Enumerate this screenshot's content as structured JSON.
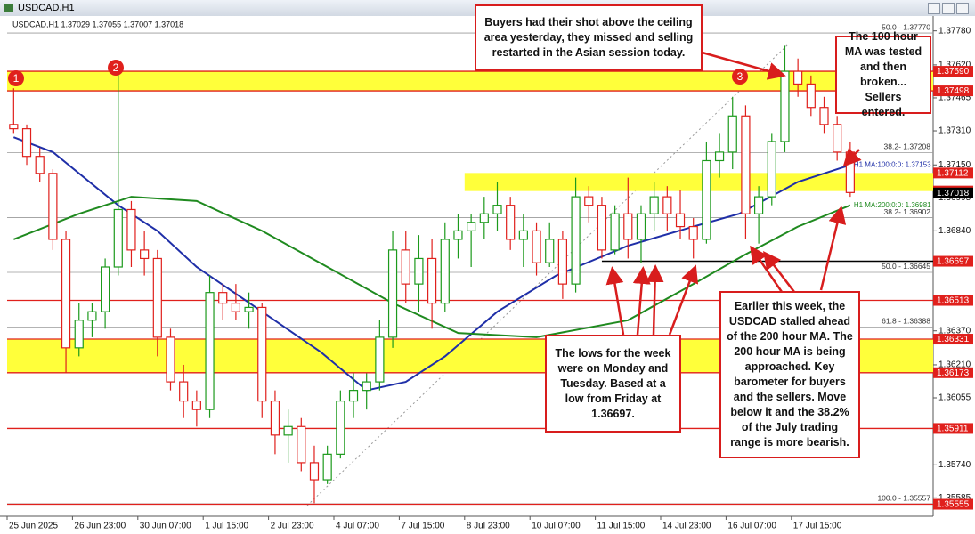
{
  "window": {
    "title": "USDCAD,H1"
  },
  "chart_data": {
    "type": "candlestick",
    "info": "USDCAD,H1  1.37029 1.37055 1.37007 1.37018",
    "categories": [
      "25 Jun 2025",
      null,
      null,
      null,
      null,
      "26 Jun 23:00",
      null,
      null,
      null,
      null,
      "30 Jun 07:00",
      null,
      null,
      null,
      null,
      "1 Jul 15:00",
      null,
      null,
      null,
      null,
      "2 Jul 23:00",
      null,
      null,
      null,
      null,
      "4 Jul 07:00",
      null,
      null,
      null,
      null,
      "7 Jul 15:00",
      null,
      null,
      null,
      null,
      "8 Jul 23:00",
      null,
      null,
      null,
      null,
      "10 Jul 07:00",
      null,
      null,
      null,
      null,
      "11 Jul 15:00",
      null,
      null,
      null,
      null,
      "14 Jul 23:00",
      null,
      null,
      null,
      null,
      "16 Jul 07:00",
      null,
      null,
      null,
      null,
      "17 Jul 15:00",
      null,
      null,
      null,
      null
    ],
    "open": [
      1.3734,
      1.3732,
      1.3719,
      1.3711,
      1.368,
      1.3629,
      1.3642,
      1.3646,
      1.3667,
      1.3694,
      1.3675,
      1.3671,
      1.3634,
      1.3613,
      1.3604,
      1.36,
      1.3655,
      1.365,
      1.3646,
      1.3648,
      1.3604,
      1.3588,
      1.3592,
      1.3575,
      1.3567,
      1.3579,
      1.3604,
      1.3609,
      1.3613,
      1.3634,
      1.3675,
      1.3659,
      1.3671,
      1.365,
      1.368,
      1.3684,
      1.3688,
      1.3692,
      1.3696,
      1.368,
      1.3684,
      1.3669,
      1.368,
      1.3659,
      1.37,
      1.3696,
      1.3675,
      1.3692,
      1.368,
      1.3692,
      1.37,
      1.3692,
      1.3686,
      1.368,
      1.3717,
      1.3721,
      1.3738,
      1.3692,
      1.37,
      1.3726,
      1.3759,
      1.3753,
      1.3742,
      1.3734,
      1.3721
    ],
    "high": [
      1.3751,
      1.3734,
      1.3723,
      1.3713,
      1.3684,
      1.365,
      1.365,
      1.3671,
      1.3761,
      1.3698,
      1.3684,
      1.3675,
      1.3638,
      1.3621,
      1.3609,
      1.3663,
      1.3659,
      1.3659,
      1.3655,
      1.365,
      1.3609,
      1.36,
      1.3596,
      1.3583,
      1.3583,
      1.3609,
      1.3617,
      1.3617,
      1.3642,
      1.3684,
      1.3684,
      1.3682,
      1.368,
      1.3688,
      1.3692,
      1.3692,
      1.37,
      1.3707,
      1.37,
      1.3692,
      1.3688,
      1.3688,
      1.3684,
      1.3709,
      1.3705,
      1.37,
      1.3696,
      1.3709,
      1.3696,
      1.3707,
      1.3705,
      1.3703,
      1.369,
      1.3726,
      1.373,
      1.3747,
      1.3743,
      1.3705,
      1.373,
      1.3771,
      1.3765,
      1.3757,
      1.3747,
      1.3738,
      1.3726
    ],
    "low": [
      1.373,
      1.3715,
      1.3707,
      1.3675,
      1.3617,
      1.3625,
      1.3634,
      1.3638,
      1.3663,
      1.3667,
      1.3663,
      1.3625,
      1.3609,
      1.3596,
      1.3592,
      1.3596,
      1.3642,
      1.3642,
      1.3638,
      1.3596,
      1.3579,
      1.3575,
      1.3571,
      1.3556,
      1.3565,
      1.3577,
      1.3596,
      1.36,
      1.3609,
      1.3629,
      1.365,
      1.3646,
      1.3638,
      1.3646,
      1.3671,
      1.3667,
      1.368,
      1.3684,
      1.3675,
      1.3667,
      1.3663,
      1.3667,
      1.3652,
      1.3655,
      1.3688,
      1.3671,
      1.3673,
      1.3671,
      1.3669,
      1.3684,
      1.3684,
      1.368,
      1.3671,
      1.3678,
      1.3709,
      1.3713,
      1.368,
      1.3678,
      1.3696,
      1.3721,
      1.3747,
      1.3738,
      1.373,
      1.3717,
      1.37
    ],
    "close": [
      1.3732,
      1.3719,
      1.3711,
      1.368,
      1.3629,
      1.3642,
      1.3646,
      1.3667,
      1.3694,
      1.3675,
      1.3671,
      1.3634,
      1.3613,
      1.3604,
      1.36,
      1.3655,
      1.365,
      1.3646,
      1.3648,
      1.3604,
      1.3588,
      1.3592,
      1.3575,
      1.3567,
      1.3579,
      1.3604,
      1.3609,
      1.3613,
      1.3634,
      1.3675,
      1.3659,
      1.3671,
      1.365,
      1.368,
      1.3684,
      1.3688,
      1.3692,
      1.3696,
      1.368,
      1.3684,
      1.3669,
      1.368,
      1.3659,
      1.37,
      1.3696,
      1.3675,
      1.3692,
      1.368,
      1.3692,
      1.37,
      1.3692,
      1.3686,
      1.368,
      1.3717,
      1.3721,
      1.3738,
      1.3692,
      1.37,
      1.3726,
      1.3759,
      1.3753,
      1.3742,
      1.3734,
      1.3721,
      1.3702
    ],
    "up_color": "#1c9a1c",
    "down_color": "#e0201c",
    "ylim": [
      1.35507,
      1.37833
    ],
    "yticks": [
      {
        "value": 1.3778,
        "label": "1.37780"
      },
      {
        "value": 1.3762,
        "label": "1.37620"
      },
      {
        "value": 1.37465,
        "label": "1.37465"
      },
      {
        "value": 1.3731,
        "label": "1.37310"
      },
      {
        "value": 1.3715,
        "label": "1.37150"
      },
      {
        "value": 1.36995,
        "label": "1.36995"
      },
      {
        "value": 1.3684,
        "label": "1.36840"
      },
      {
        "value": 1.3637,
        "label": "1.36370"
      },
      {
        "value": 1.3621,
        "label": "1.36210"
      },
      {
        "value": 1.36055,
        "label": "1.36055"
      },
      {
        "value": 1.3574,
        "label": "1.35740"
      },
      {
        "value": 1.35585,
        "label": "1.35585"
      }
    ],
    "series": [
      {
        "label": "H1 MA:100:0:0: 1.37153",
        "color": "#1f2fa8",
        "x": [
          0,
          3,
          8,
          11,
          14,
          19,
          23.5,
          27,
          30,
          33,
          37,
          41.5,
          47,
          52,
          55.5,
          60,
          64
        ],
        "values": [
          1.3728,
          1.3721,
          1.3696,
          1.3684,
          1.3667,
          1.3646,
          1.3627,
          1.3609,
          1.3613,
          1.3625,
          1.3646,
          1.3663,
          1.3677,
          1.3686,
          1.3692,
          1.3707,
          1.3715
        ]
      },
      {
        "label": "H1 MA:200:0:0: 1.36981",
        "color": "#1f8a1f",
        "x": [
          0,
          5,
          9,
          14,
          19,
          24,
          29,
          34,
          40,
          47,
          52,
          56,
          60,
          64
        ],
        "values": [
          1.368,
          1.3692,
          1.37,
          1.3698,
          1.3684,
          1.3667,
          1.365,
          1.3636,
          1.3634,
          1.3642,
          1.3659,
          1.3673,
          1.3686,
          1.3696
        ]
      }
    ],
    "zones": [
      {
        "from": 1.37498,
        "to": 1.3759,
        "start": 0
      },
      {
        "from": 1.37027,
        "to": 1.37112,
        "start": 35
      },
      {
        "from": 1.36173,
        "to": 1.36331,
        "start": 0
      }
    ],
    "zone_color": "#ffff3a",
    "fib_levels": [
      {
        "value": 1.3777,
        "label": "50.0 - 1.37770"
      },
      {
        "value": 1.37208,
        "label": "38.2- 1.37208"
      },
      {
        "value": 1.36902,
        "label": "38.2- 1.36902"
      },
      {
        "value": 1.36645,
        "label": "50.0 - 1.36645"
      },
      {
        "value": 1.36388,
        "label": "61.8 - 1.36388"
      },
      {
        "value": 1.35557,
        "label": "100.0 - 1.35557"
      }
    ],
    "price_markers": [
      {
        "value": 1.3759,
        "label": "1.37590",
        "from": 0,
        "line_color": "#e0201c"
      },
      {
        "value": 1.37498,
        "label": "1.37498",
        "from": 0,
        "line_color": "#e0201c"
      },
      {
        "value": 1.37112,
        "label": "1.37112",
        "from": null,
        "line_color": null
      },
      {
        "value": 1.37027,
        "label": "1.37027",
        "from": null,
        "line_color": null
      },
      {
        "value": 1.36697,
        "label": "1.36697",
        "from": 45.5,
        "line_color": "#000000"
      },
      {
        "value": 1.36513,
        "label": "1.36513",
        "from": 0,
        "line_color": "#e0201c"
      },
      {
        "value": 1.36331,
        "label": "1.36331",
        "from": 0,
        "line_color": "#e0201c"
      },
      {
        "value": 1.36173,
        "label": "1.36173",
        "from": 0,
        "line_color": "#e0201c"
      },
      {
        "value": 1.35911,
        "label": "1.35911",
        "from": 0,
        "line_color": "#e0201c"
      },
      {
        "value": 1.35555,
        "label": "1.35555",
        "from": 0,
        "line_color": "#e0201c"
      }
    ],
    "current_price": {
      "value": 1.37018,
      "label": "1.37018"
    }
  },
  "points": [
    "1",
    "2",
    "3"
  ],
  "annotations": [
    "Buyers had their shot above the ceiling area yesterday, they missed and selling restarted in the Asian session today.",
    "The 100 hour MA was tested and then broken... Sellers entered.",
    "The lows for the week were on Monday and Tuesday. Based at a low from Friday at 1.36697.",
    "Earlier this week, the USDCAD stalled ahead of the 200 hour MA. The 200 hour MA is being approached. Key barometer for buyers and the sellers.  Move below it and the 38.2% of the July trading range is more bearish."
  ]
}
